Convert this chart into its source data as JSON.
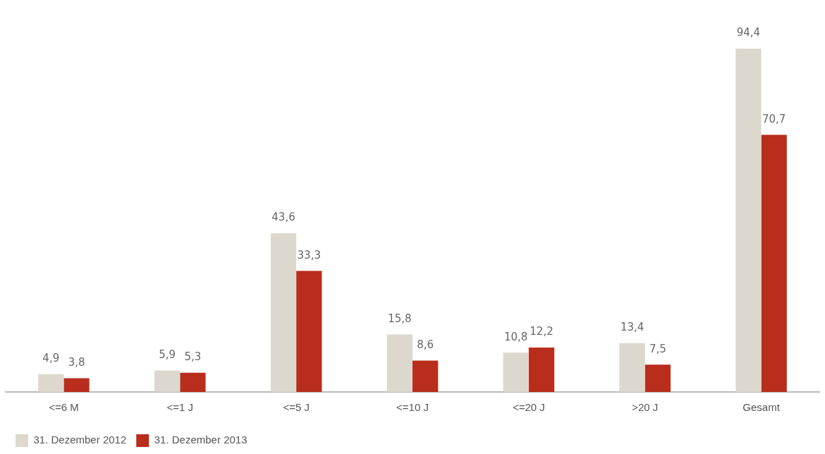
{
  "chart_data": {
    "type": "bar",
    "categories": [
      "<=6 M",
      "<=1 J",
      "<=5 J",
      "<=10 J",
      "<=20 J",
      ">20 J",
      "Gesamt"
    ],
    "series": [
      {
        "name": "31. Dezember 2012",
        "color": "#ddd8cd",
        "values": [
          4.9,
          5.9,
          43.6,
          15.8,
          10.8,
          13.4,
          94.4
        ],
        "value_labels": [
          "4,9",
          "5,9",
          "43,6",
          "15,8",
          "10,8",
          "13,4",
          "94,4"
        ]
      },
      {
        "name": "31. Dezember 2013",
        "color": "#b92d1c",
        "values": [
          3.8,
          5.3,
          33.3,
          8.6,
          12.2,
          7.5,
          70.7
        ],
        "value_labels": [
          "3,8",
          "5,3",
          "33,3",
          "8,6",
          "12,2",
          "7,5",
          "70,7"
        ]
      }
    ],
    "grid": false,
    "legend": "bottom left"
  }
}
